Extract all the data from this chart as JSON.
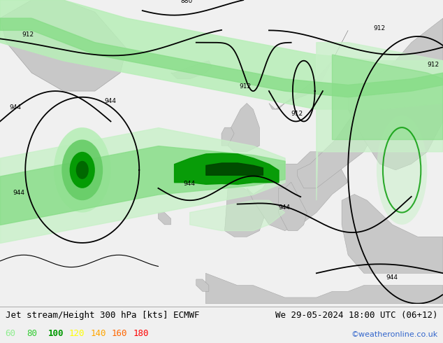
{
  "title_left": "Jet stream/Height 300 hPa [kts] ECMWF",
  "title_right": "We 29-05-2024 18:00 UTC (06+12)",
  "credit": "©weatheronline.co.uk",
  "legend_values": [
    60,
    80,
    100,
    120,
    140,
    160,
    180
  ],
  "legend_colors": [
    "#90ee90",
    "#32cd32",
    "#009900",
    "#ffff00",
    "#ffa500",
    "#ff6600",
    "#ff0000"
  ],
  "bg_ocean": "#f0f0f0",
  "bg_land": "#d8d8d8",
  "jet_light": "#b2f0b2",
  "jet_mid": "#66cc66",
  "jet_dark": "#009900",
  "contour_color": "#000000",
  "title_fontsize": 9,
  "credit_color": "#3366cc",
  "legend_fontsize": 9,
  "bottom_bg": "#f0f0f0",
  "contour_labels": [
    "944",
    "944",
    "944",
    "944",
    "944",
    "912",
    "912",
    "912",
    "912",
    "880"
  ],
  "xlim": [
    -80,
    60
  ],
  "ylim": [
    25,
    75
  ]
}
